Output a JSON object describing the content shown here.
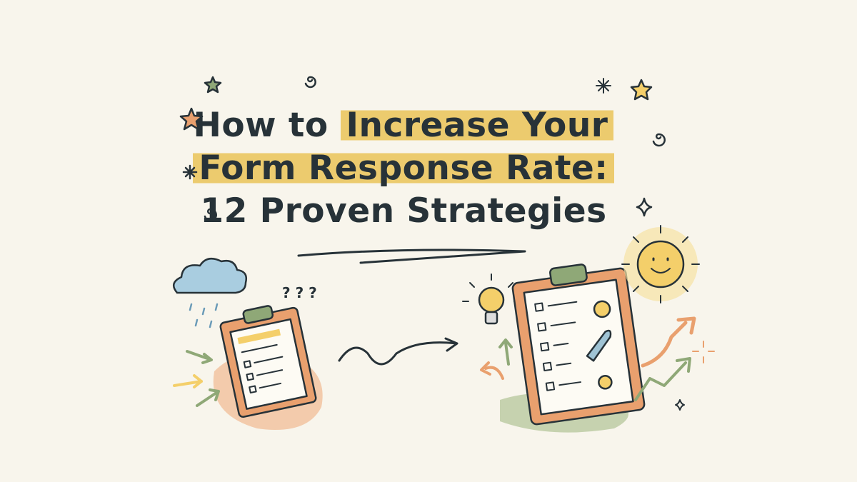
{
  "title": {
    "line1_plain": "How to ",
    "line1_highlight": "Increase Your",
    "line2_highlight": "Form Response Rate:",
    "line3": "12 Proven Strategies"
  },
  "illustration": {
    "question_marks": "? ? ?",
    "colors": {
      "highlight": "#eccb6e",
      "ink": "#273238",
      "orange": "#e9a06e",
      "green": "#8fa877",
      "sky": "#a9cde0",
      "sun": "#f4cf6a"
    }
  }
}
